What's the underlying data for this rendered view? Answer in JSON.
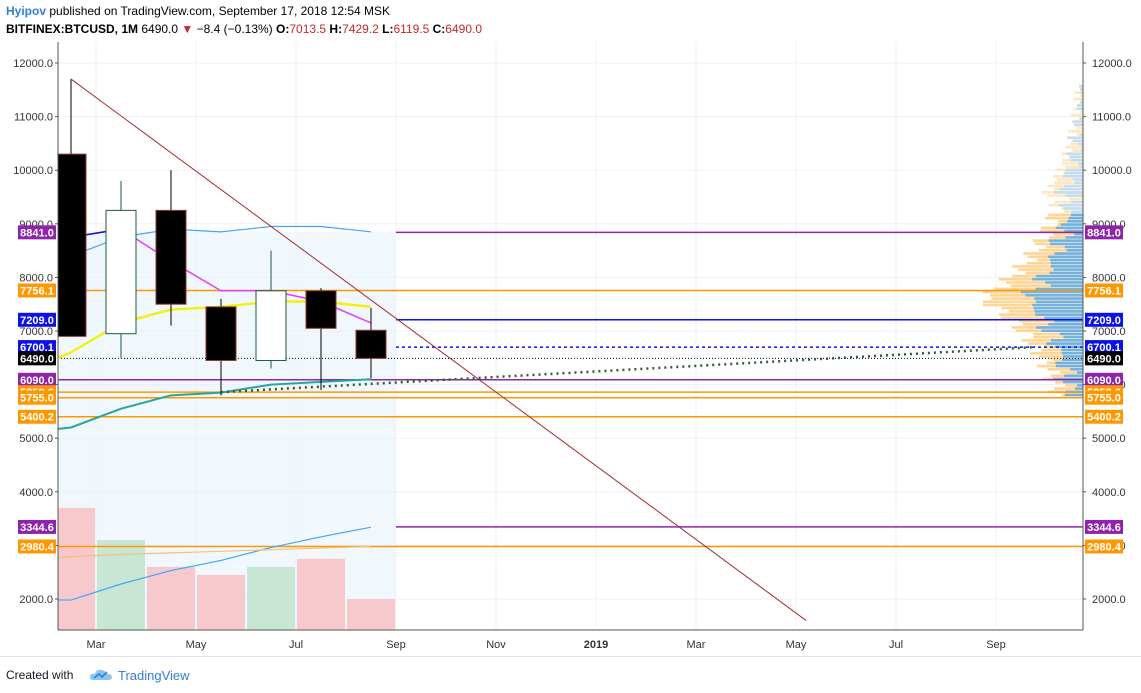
{
  "header": {
    "author": "Hyipov",
    "published_text": "published on TradingView.com, September 17, 2018 12:54 MSK",
    "symbol_timeframe": "BITFINEX:BTCUSD, 1M",
    "last": "6490.0",
    "change": "−8.4 (−0.13%)",
    "open_label": "O:",
    "open": "7013.5",
    "high_label": "H:",
    "high": "7429.2",
    "low_label": "L:",
    "low": "6119.5",
    "close_label": "C:",
    "close": "6490.0"
  },
  "footer": {
    "created_with": "Created with",
    "brand": "TradingView"
  },
  "colors": {
    "bg_shade": "#e3f2fd",
    "grid": "#eef0f3",
    "up_body": "#ffffff",
    "down_body": "#000000",
    "candle_border": "#1b5e3e",
    "magenta": "#e040fb",
    "yellow": "#f2f210",
    "teal": "#26a69a",
    "skyblue": "#42a5f5",
    "purple": "#8e24aa",
    "orange": "#ff9800",
    "blue": "#0d12e6",
    "black": "#000000",
    "trendline": "#a52a2a",
    "vol_up": "#c8e6d4",
    "vol_down": "#f8c9cc"
  },
  "chart_data": {
    "type": "candlestick",
    "timeframe": "1M",
    "price_axis": {
      "ylim": [
        1300,
        12500
      ],
      "ticks": [
        2000,
        3000,
        4000,
        5000,
        6000,
        7000,
        8000,
        9000,
        10000,
        11000,
        12000
      ],
      "tick_labels": [
        "2000.0",
        "3000.0",
        "4000.0",
        "5000.0",
        "6000.0",
        "7000.0",
        "8000.0",
        "9000.0",
        "10000.0",
        "11000.0",
        "12000.0"
      ]
    },
    "time_axis": {
      "ticks": [
        "2018-03",
        "2018-05",
        "2018-07",
        "2018-09",
        "2018-11",
        "2019-01",
        "2019-03",
        "2019-05",
        "2019-07",
        "2019-09"
      ],
      "tick_labels": [
        "Mar",
        "May",
        "Jul",
        "Sep",
        "Nov",
        "2019",
        "Mar",
        "May",
        "Jul",
        "Sep"
      ]
    },
    "candles": [
      {
        "month": "2018-02",
        "open": 10300,
        "high": 11700,
        "low": 6900,
        "close": 6900
      },
      {
        "month": "2018-03",
        "open": 6950,
        "high": 9800,
        "low": 6500,
        "close": 9250
      },
      {
        "month": "2018-04",
        "open": 9250,
        "high": 10000,
        "low": 7100,
        "close": 7500
      },
      {
        "month": "2018-05",
        "open": 7450,
        "high": 7600,
        "low": 5800,
        "close": 6450
      },
      {
        "month": "2018-06",
        "open": 6450,
        "high": 8500,
        "low": 6300,
        "close": 7750
      },
      {
        "month": "2018-07",
        "open": 7750,
        "high": 7800,
        "low": 5900,
        "close": 7050
      },
      {
        "month": "2018-08",
        "open": 7013.5,
        "high": 7429.2,
        "low": 6119.5,
        "close": 6490.0
      }
    ],
    "volume": [
      {
        "month": "2018-01",
        "value": 4250,
        "dir": "up"
      },
      {
        "month": "2018-02",
        "value": 3700,
        "dir": "down"
      },
      {
        "month": "2018-03",
        "value": 3100,
        "dir": "up"
      },
      {
        "month": "2018-04",
        "value": 2600,
        "dir": "down"
      },
      {
        "month": "2018-05",
        "value": 2450,
        "dir": "down"
      },
      {
        "month": "2018-06",
        "value": 2600,
        "dir": "up"
      },
      {
        "month": "2018-07",
        "value": 2750,
        "dir": "down"
      },
      {
        "month": "2018-08",
        "value": 2000,
        "dir": "down"
      }
    ],
    "lines": {
      "magenta": [
        [
          "2018-01",
          9400
        ],
        [
          "2018-02",
          8750
        ],
        [
          "2018-03",
          8900
        ],
        [
          "2018-04",
          8300
        ],
        [
          "2018-05",
          7750
        ],
        [
          "2018-06",
          7750
        ],
        [
          "2018-07",
          7550
        ],
        [
          "2018-08",
          7150
        ]
      ],
      "yellow": [
        [
          "2018-01",
          6200
        ],
        [
          "2018-02",
          6600
        ],
        [
          "2018-03",
          7150
        ],
        [
          "2018-04",
          7400
        ],
        [
          "2018-05",
          7450
        ],
        [
          "2018-06",
          7550
        ],
        [
          "2018-07",
          7550
        ],
        [
          "2018-08",
          7450
        ]
      ],
      "upper_band": [
        [
          "2018-01",
          8050
        ],
        [
          "2018-02",
          8400
        ],
        [
          "2018-03",
          8750
        ],
        [
          "2018-04",
          8900
        ],
        [
          "2018-05",
          8850
        ],
        [
          "2018-06",
          8950
        ],
        [
          "2018-07",
          8950
        ],
        [
          "2018-08",
          8850
        ]
      ],
      "lower_band": [
        [
          "2018-01",
          5100
        ],
        [
          "2018-02",
          5200
        ],
        [
          "2018-03",
          5550
        ],
        [
          "2018-04",
          5800
        ],
        [
          "2018-05",
          5850
        ],
        [
          "2018-06",
          6000
        ],
        [
          "2018-07",
          6050
        ],
        [
          "2018-08",
          6100
        ]
      ],
      "vol_ma": [
        [
          "2018-01",
          1990
        ],
        [
          "2018-02",
          1980
        ],
        [
          "2018-03",
          2280
        ],
        [
          "2018-04",
          2530
        ],
        [
          "2018-05",
          2720
        ],
        [
          "2018-06",
          2960
        ],
        [
          "2018-07",
          3160
        ],
        [
          "2018-08",
          3340
        ]
      ],
      "vol_ma2": [
        [
          "2018-01",
          2700
        ],
        [
          "2018-02",
          2790
        ],
        [
          "2018-03",
          2830
        ],
        [
          "2018-04",
          2860
        ],
        [
          "2018-05",
          2890
        ],
        [
          "2018-06",
          2920
        ],
        [
          "2018-07",
          2950
        ],
        [
          "2018-08",
          2980
        ]
      ]
    },
    "trendline": {
      "from": [
        "2018-02",
        11700
      ],
      "to": [
        "2019-05",
        1600
      ]
    },
    "dotted_trend": {
      "from": [
        "2018-05",
        5858.6
      ],
      "to": [
        "2019-09",
        6700.1
      ]
    },
    "levels": [
      {
        "price": 8841.0,
        "label": "8841.0",
        "color": "purple"
      },
      {
        "price": 7756.1,
        "label": "7756.1",
        "color": "orange"
      },
      {
        "price": 7209.0,
        "label": "7209.0",
        "color": "blue"
      },
      {
        "price": 6700.1,
        "label": "6700.1",
        "color": "blue",
        "dashed": true
      },
      {
        "price": 6490.0,
        "label": "6490.0",
        "color": "black",
        "dotted": true
      },
      {
        "price": 6090.0,
        "label": "6090.0",
        "color": "purple"
      },
      {
        "price": 5858.6,
        "label": "5858.6",
        "color": "orange"
      },
      {
        "price": 5755.0,
        "label": "5755.0",
        "color": "orange"
      },
      {
        "price": 5400.2,
        "label": "5400.2",
        "color": "orange"
      },
      {
        "price": 3344.6,
        "label": "3344.6",
        "color": "purple"
      },
      {
        "price": 2980.4,
        "label": "2980.4",
        "color": "orange"
      }
    ]
  }
}
